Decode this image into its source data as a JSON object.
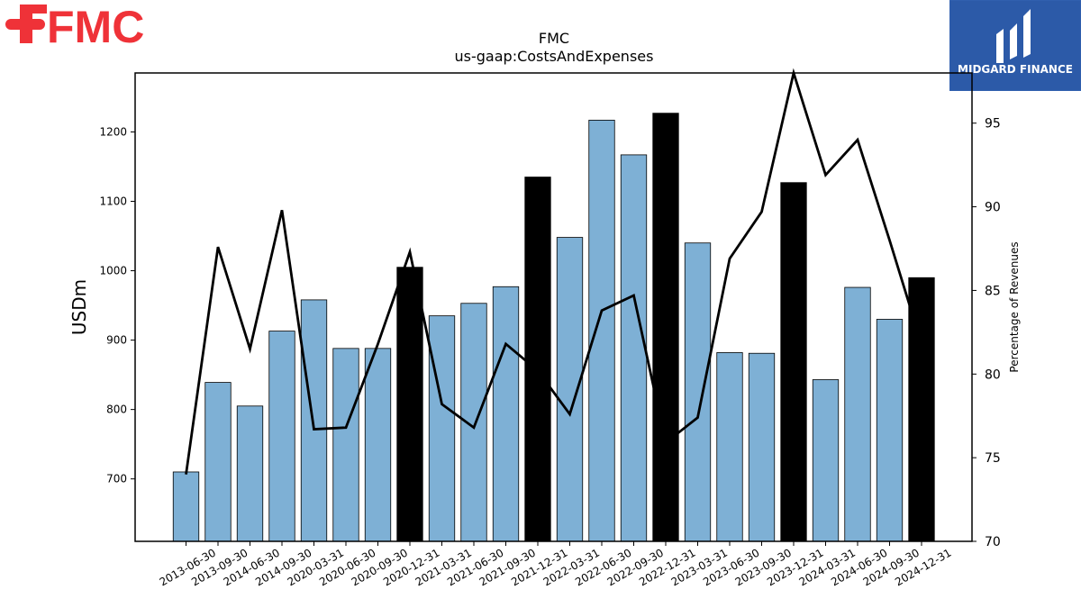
{
  "brand": {
    "left_logo_text": "FMC",
    "left_logo_color": "#ef3238",
    "right_logo_text": "MIDGARD FINANCE",
    "right_logo_bg": "#2c5aa8"
  },
  "chart_data": {
    "type": "bar",
    "title": "FMC",
    "subtitle": "us-gaap:CostsAndExpenses",
    "ylabel": "USDm",
    "ylabel_right": "Percentage of Revenues",
    "categories": [
      "2013-06-30",
      "2013-09-30",
      "2014-06-30",
      "2014-09-30",
      "2020-03-31",
      "2020-06-30",
      "2020-09-30",
      "2020-12-31",
      "2021-03-31",
      "2021-06-30",
      "2021-09-30",
      "2021-12-31",
      "2022-03-31",
      "2022-06-30",
      "2022-09-30",
      "2022-12-31",
      "2023-03-31",
      "2023-06-30",
      "2023-09-30",
      "2023-12-31",
      "2024-03-31",
      "2024-06-30",
      "2024-09-30",
      "2024-12-31"
    ],
    "series": [
      {
        "type": "bar",
        "axis": "left",
        "values": [
          710,
          839,
          805,
          913,
          958,
          888,
          888,
          1005,
          935,
          953,
          977,
          1135,
          1048,
          1217,
          1167,
          1227,
          1040,
          882,
          881,
          1127,
          843,
          976,
          930,
          990
        ],
        "colors": [
          "#7eb0d5",
          "#7eb0d5",
          "#7eb0d5",
          "#7eb0d5",
          "#7eb0d5",
          "#7eb0d5",
          "#7eb0d5",
          "#000000",
          "#7eb0d5",
          "#7eb0d5",
          "#7eb0d5",
          "#000000",
          "#7eb0d5",
          "#7eb0d5",
          "#7eb0d5",
          "#000000",
          "#7eb0d5",
          "#7eb0d5",
          "#7eb0d5",
          "#000000",
          "#7eb0d5",
          "#7eb0d5",
          "#7eb0d5",
          "#000000"
        ]
      },
      {
        "type": "line",
        "axis": "right",
        "color": "#000000",
        "values": [
          74.0,
          87.6,
          81.5,
          89.8,
          76.7,
          76.8,
          81.8,
          87.3,
          78.2,
          76.8,
          81.8,
          80.2,
          77.6,
          83.8,
          84.7,
          75.9,
          77.4,
          86.9,
          89.7,
          98.0,
          91.9,
          94.0,
          88.0,
          81.8
        ]
      }
    ],
    "ylim": [
      610,
      1285
    ],
    "yticks": [
      700,
      800,
      900,
      1000,
      1100,
      1200
    ],
    "ylim_right": [
      70,
      98
    ],
    "yticks_right": [
      70,
      75,
      80,
      85,
      90,
      95
    ],
    "grid": false,
    "legend": "none"
  }
}
